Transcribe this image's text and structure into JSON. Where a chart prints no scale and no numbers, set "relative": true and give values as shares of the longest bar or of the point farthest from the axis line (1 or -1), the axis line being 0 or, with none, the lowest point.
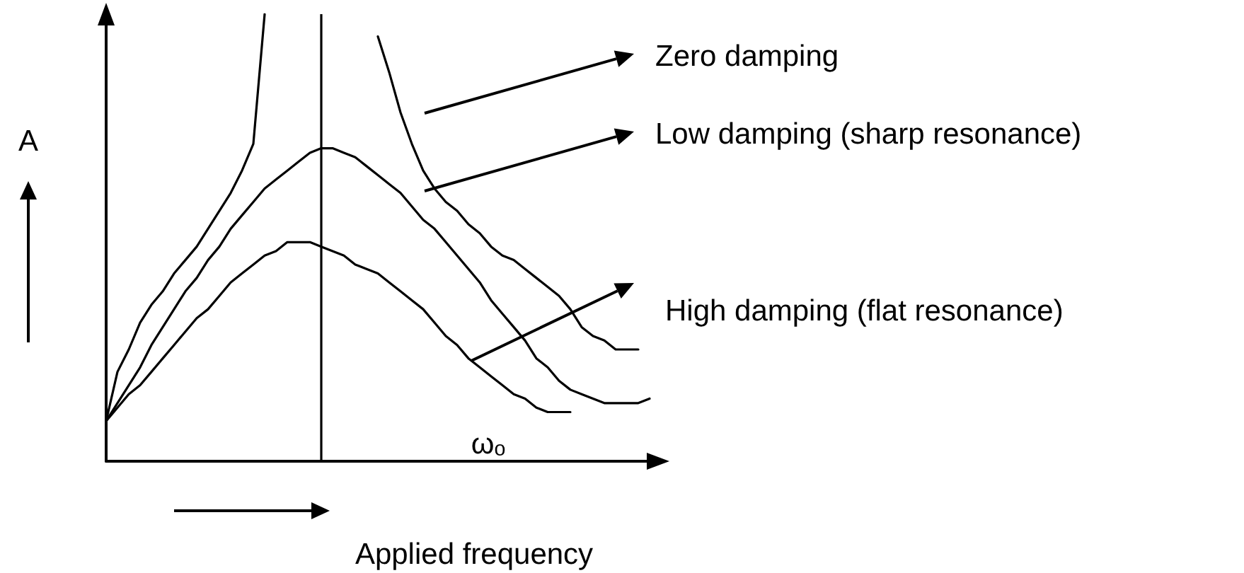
{
  "chart_data": {
    "type": "line",
    "relative": true,
    "xlabel": "Applied frequency",
    "ylabel": "A",
    "legend": "right",
    "annotations": [
      "ωₒ"
    ],
    "marker": "none",
    "line_style": "solid",
    "categories": [
      null,
      null,
      null,
      null,
      null,
      null,
      null,
      null,
      null,
      null,
      null,
      null,
      null,
      null,
      null,
      null,
      null,
      null,
      null,
      null,
      null,
      null,
      null,
      null,
      null,
      null,
      null,
      null,
      null,
      null,
      null,
      null,
      null,
      null,
      null,
      null,
      null,
      null,
      null,
      null,
      null,
      null,
      null,
      null,
      null,
      null,
      null,
      null,
      null
    ],
    "series": [
      {
        "name": "Zero damping",
        "color": "#000000",
        "values": [
          0.09,
          0.2,
          0.25,
          0.31,
          0.35,
          0.38,
          0.42,
          0.45,
          0.48,
          0.52,
          0.56,
          0.6,
          0.65,
          0.71,
          1,
          null,
          null,
          null,
          null,
          null,
          null,
          null,
          null,
          null,
          0.95,
          0.87,
          0.78,
          0.71,
          0.65,
          0.61,
          0.58,
          0.56,
          0.53,
          0.51,
          0.48,
          0.46,
          0.45,
          0.43,
          0.41,
          0.39,
          0.37,
          0.34,
          0.3,
          0.28,
          0.27,
          0.25,
          0.25,
          0.25,
          null
        ]
      },
      {
        "name": "Low damping (sharp resonance)",
        "color": "#000000",
        "values": [
          0.09,
          0.13,
          0.17,
          0.21,
          0.26,
          0.3,
          0.34,
          0.38,
          0.41,
          0.45,
          0.48,
          0.52,
          0.55,
          0.58,
          0.61,
          0.63,
          0.65,
          0.67,
          0.69,
          0.7,
          0.7,
          0.69,
          0.68,
          0.66,
          0.64,
          0.62,
          0.6,
          0.57,
          0.54,
          0.52,
          0.49,
          0.46,
          0.43,
          0.4,
          0.36,
          0.33,
          0.3,
          0.27,
          0.23,
          0.21,
          0.18,
          0.16,
          0.15,
          0.14,
          0.13,
          0.13,
          0.13,
          0.13,
          0.14
        ]
      },
      {
        "name": "High damping (flat resonance)",
        "color": "#000000",
        "values": [
          0.09,
          0.12,
          0.15,
          0.17,
          0.2,
          0.23,
          0.26,
          0.29,
          0.32,
          0.34,
          0.37,
          0.4,
          0.42,
          0.44,
          0.46,
          0.47,
          0.49,
          0.49,
          0.49,
          0.48,
          0.47,
          0.46,
          0.44,
          0.43,
          0.42,
          0.4,
          0.38,
          0.36,
          0.34,
          0.31,
          0.28,
          0.26,
          0.23,
          0.21,
          0.19,
          0.17,
          0.15,
          0.14,
          0.12,
          0.11,
          0.11,
          0.11,
          null,
          null,
          null,
          null,
          null,
          null,
          null
        ]
      }
    ]
  }
}
